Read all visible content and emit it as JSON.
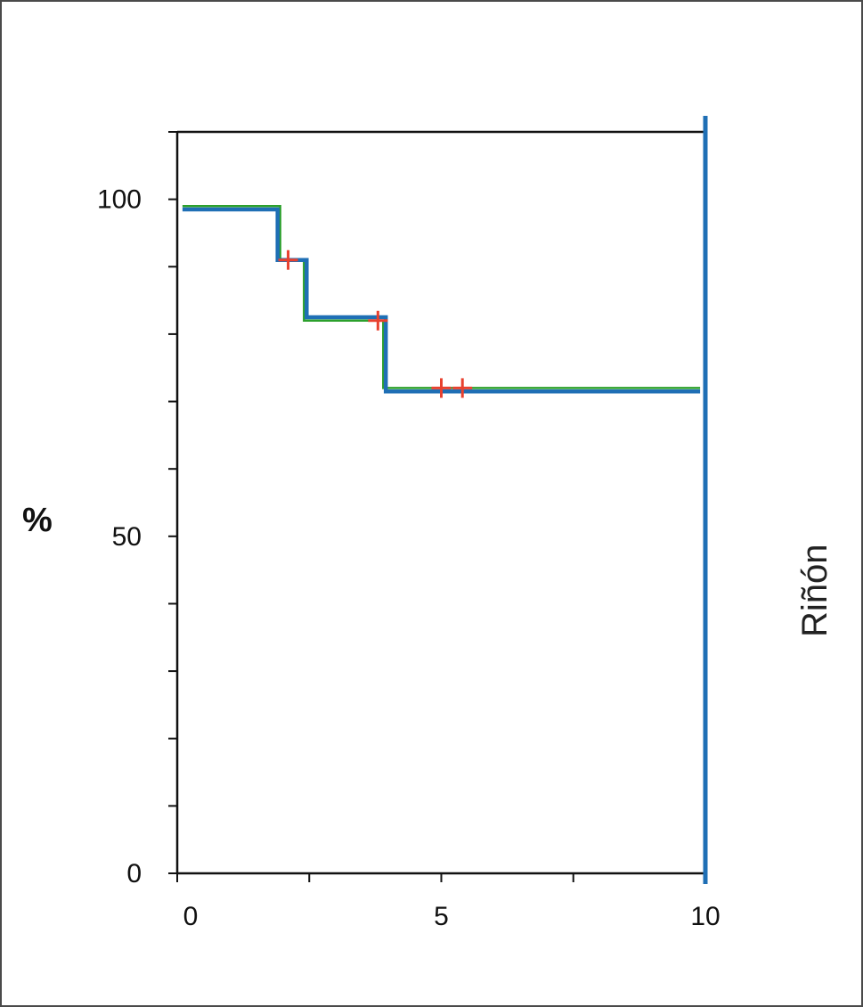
{
  "chart_data": {
    "type": "line",
    "title": "",
    "xlabel": "",
    "ylabel": "%",
    "side_label": "Riñón",
    "xlim": [
      0,
      10
    ],
    "ylim": [
      0,
      110
    ],
    "x_ticks": [
      0,
      5,
      10
    ],
    "y_ticks": [
      0,
      50,
      100
    ],
    "x_minor_ticks": [
      0,
      2.5,
      5,
      7.5,
      10
    ],
    "y_minor_ticks": [
      0,
      10,
      20,
      30,
      40,
      50,
      60,
      70,
      80,
      90,
      100,
      110
    ],
    "grid": false,
    "legend": "none",
    "colors": {
      "blue": "#1f6fb5",
      "green": "#2ca02c",
      "censor": "#e8412f",
      "axis": "#111111"
    },
    "series": [
      {
        "color": "green",
        "x": [
          0.1,
          1.95,
          1.95,
          2.4,
          2.4,
          3.9,
          3.9,
          9.9
        ],
        "y": [
          99,
          99,
          91,
          91,
          82,
          82,
          72,
          72
        ]
      },
      {
        "color": "blue",
        "x": [
          0.1,
          1.9,
          1.9,
          2.45,
          2.45,
          3.95,
          3.95,
          9.9
        ],
        "y": [
          98.5,
          98.5,
          91,
          91,
          82.5,
          82.5,
          71.5,
          71.5
        ]
      }
    ],
    "censor_marks": [
      {
        "x": 2.1,
        "y": 91
      },
      {
        "x": 3.8,
        "y": 82
      },
      {
        "x": 5.0,
        "y": 72
      },
      {
        "x": 5.4,
        "y": 72
      }
    ],
    "reference_line_x": 10
  }
}
